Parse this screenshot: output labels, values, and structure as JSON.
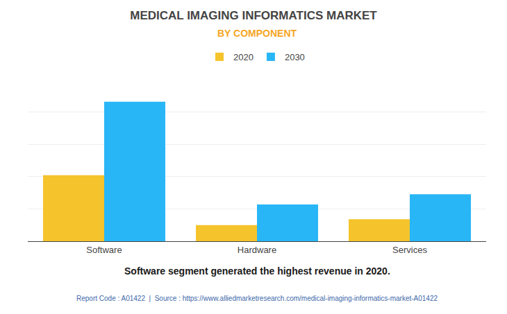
{
  "chart_data": {
    "type": "bar",
    "title": "MEDICAL IMAGING INFORMATICS MARKET",
    "subtitle": "BY COMPONENT",
    "categories": [
      "Software",
      "Hardware",
      "Services"
    ],
    "series": [
      {
        "name": "2020",
        "color": "#F5C42C",
        "values": [
          4.5,
          1.1,
          1.5
        ]
      },
      {
        "name": "2030",
        "color": "#29B6F6",
        "values": [
          9.5,
          2.5,
          3.2
        ]
      }
    ],
    "ylim": [
      0,
      11
    ],
    "yticks": [
      0,
      2.2,
      4.4,
      6.6,
      8.8,
      11
    ],
    "grid": true,
    "tick_labels": "x",
    "legend": "top",
    "annotations": [
      "Software segment generated the highest revenue in 2020.",
      "Report Code : A01422  |  Source : https://www.alliedmarketresearch.com/medical-imaging-informatics-market-A01422"
    ]
  }
}
